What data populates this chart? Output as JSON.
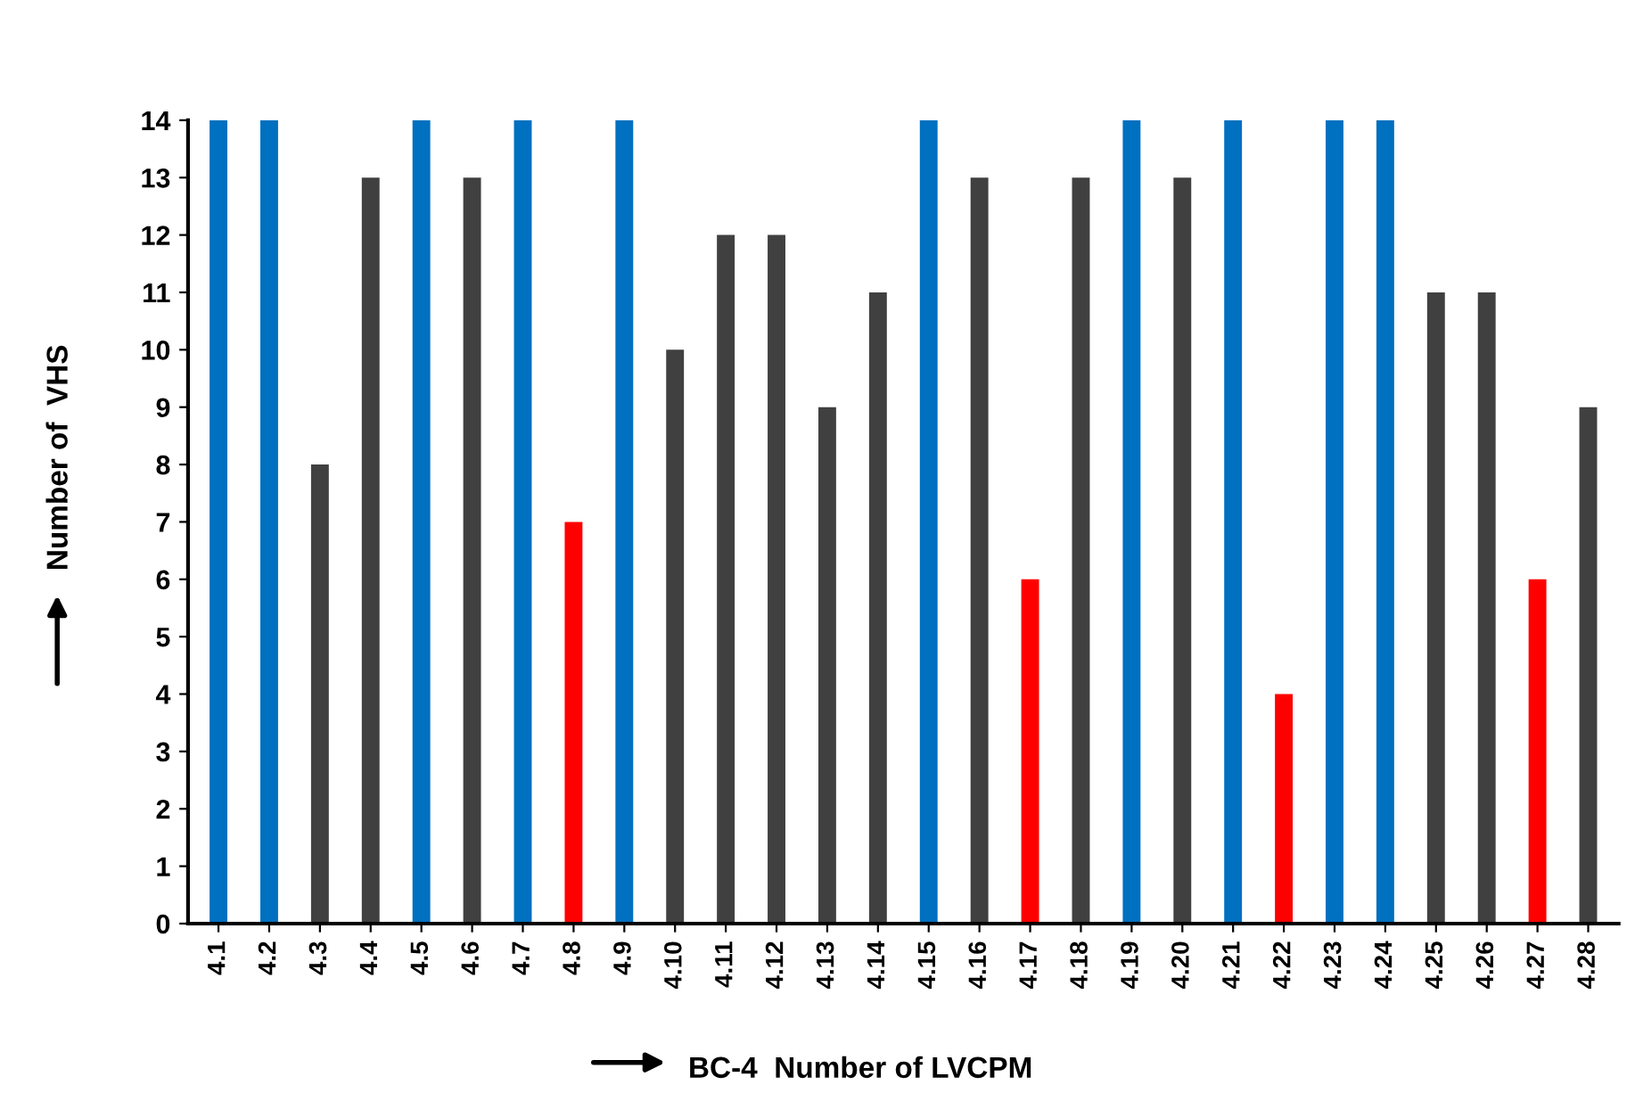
{
  "chart_data": {
    "type": "bar",
    "xlabel": "BC-4  Number of LVCPM",
    "ylabel": "Number of  VHS",
    "categories": [
      "4.1",
      "4.2",
      "4.3",
      "4.4",
      "4.5",
      "4.6",
      "4.7",
      "4.8",
      "4.9",
      "4.10",
      "4.11",
      "4.12",
      "4.13",
      "4.14",
      "4.15",
      "4.16",
      "4.17",
      "4.18",
      "4.19",
      "4.20",
      "4.21",
      "4.22",
      "4.23",
      "4.24",
      "4.25",
      "4.26",
      "4.27",
      "4.28"
    ],
    "values": [
      14,
      14,
      8,
      13,
      14,
      13,
      14,
      7,
      14,
      10,
      12,
      12,
      9,
      11,
      14,
      13,
      6,
      13,
      14,
      13,
      14,
      4,
      14,
      14,
      11,
      11,
      6,
      9
    ],
    "colors": [
      "#0070c0",
      "#0070c0",
      "#404040",
      "#404040",
      "#0070c0",
      "#404040",
      "#0070c0",
      "#ff0000",
      "#0070c0",
      "#404040",
      "#404040",
      "#404040",
      "#404040",
      "#404040",
      "#0070c0",
      "#404040",
      "#ff0000",
      "#404040",
      "#0070c0",
      "#404040",
      "#0070c0",
      "#ff0000",
      "#0070c0",
      "#0070c0",
      "#404040",
      "#404040",
      "#ff0000",
      "#404040"
    ],
    "ylim": [
      0,
      14
    ],
    "yticks": [
      0,
      1,
      2,
      3,
      4,
      5,
      6,
      7,
      8,
      9,
      10,
      11,
      12,
      13,
      14
    ],
    "grid": false,
    "legend": false
  }
}
